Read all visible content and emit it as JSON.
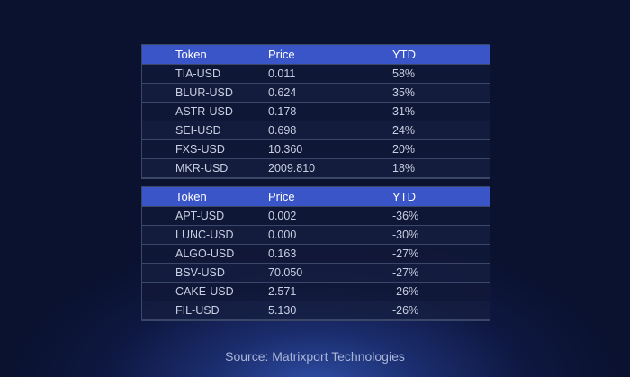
{
  "gainers_table": {
    "headers": [
      "Token",
      "Price",
      "YTD"
    ],
    "rows": [
      {
        "token": "TIA-USD",
        "price": "0.011",
        "ytd": "58%"
      },
      {
        "token": "BLUR-USD",
        "price": "0.624",
        "ytd": "35%"
      },
      {
        "token": "ASTR-USD",
        "price": "0.178",
        "ytd": "31%"
      },
      {
        "token": "SEI-USD",
        "price": "0.698",
        "ytd": "24%"
      },
      {
        "token": "FXS-USD",
        "price": "10.360",
        "ytd": "20%"
      },
      {
        "token": "MKR-USD",
        "price": "2009.810",
        "ytd": "18%"
      }
    ]
  },
  "losers_table": {
    "headers": [
      "Token",
      "Price",
      "YTD"
    ],
    "rows": [
      {
        "token": "APT-USD",
        "price": "0.002",
        "ytd": "-36%"
      },
      {
        "token": "LUNC-USD",
        "price": "0.000",
        "ytd": "-30%"
      },
      {
        "token": "ALGO-USD",
        "price": "0.163",
        "ytd": "-27%"
      },
      {
        "token": "BSV-USD",
        "price": "70.050",
        "ytd": "-27%"
      },
      {
        "token": "CAKE-USD",
        "price": "2.571",
        "ytd": "-26%"
      },
      {
        "token": "FIL-USD",
        "price": "5.130",
        "ytd": "-26%"
      }
    ]
  },
  "source_text": "Source: Matrixport Technologies",
  "colors": {
    "header_bg": "#3a55c7",
    "background": "#0a1230",
    "glow": "#2f4fa6"
  }
}
